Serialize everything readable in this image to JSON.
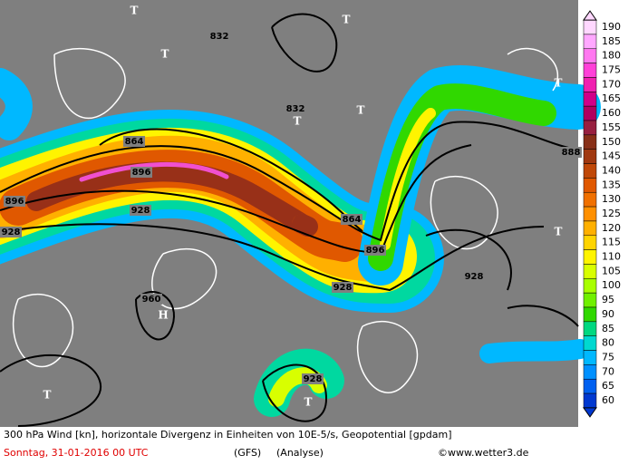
{
  "colorbar": {
    "labels": [
      "190",
      "185",
      "180",
      "175",
      "170",
      "165",
      "160",
      "155",
      "150",
      "145",
      "140",
      "135",
      "130",
      "125",
      "120",
      "115",
      "110",
      "105",
      "100",
      "95",
      "90",
      "85",
      "80",
      "75",
      "70",
      "65",
      "60"
    ],
    "colors": [
      "#ffd8ff",
      "#ffa8ff",
      "#ff78f0",
      "#ff40d8",
      "#f020b0",
      "#d00088",
      "#b00060",
      "#982040",
      "#883018",
      "#a03810",
      "#c04808",
      "#e05800",
      "#f07000",
      "#ff9000",
      "#ffb000",
      "#ffd400",
      "#fff400",
      "#d8ff00",
      "#a8ff00",
      "#70f000",
      "#30d800",
      "#00d880",
      "#00d8d0",
      "#00b8ff",
      "#0090ff",
      "#0060f0",
      "#0038d0"
    ]
  },
  "map": {
    "contour_labels": [
      "832",
      "832",
      "864",
      "896",
      "896",
      "928",
      "928",
      "864",
      "896",
      "928",
      "960",
      "928",
      "928",
      "888"
    ],
    "markers": [
      "T",
      "T",
      "T",
      "T",
      "T",
      "T",
      "H",
      "T",
      "T",
      "T"
    ]
  },
  "footer": {
    "description": "300 hPa Wind [kn], horizontale Divergenz in Einheiten von 10E-5/s, Geopotential [gpdam]",
    "date": "Sonntag, 31-01-2016  00 UTC",
    "model": "(GFS)",
    "run": "(Analyse)",
    "credit": "©www.wetter3.de"
  }
}
